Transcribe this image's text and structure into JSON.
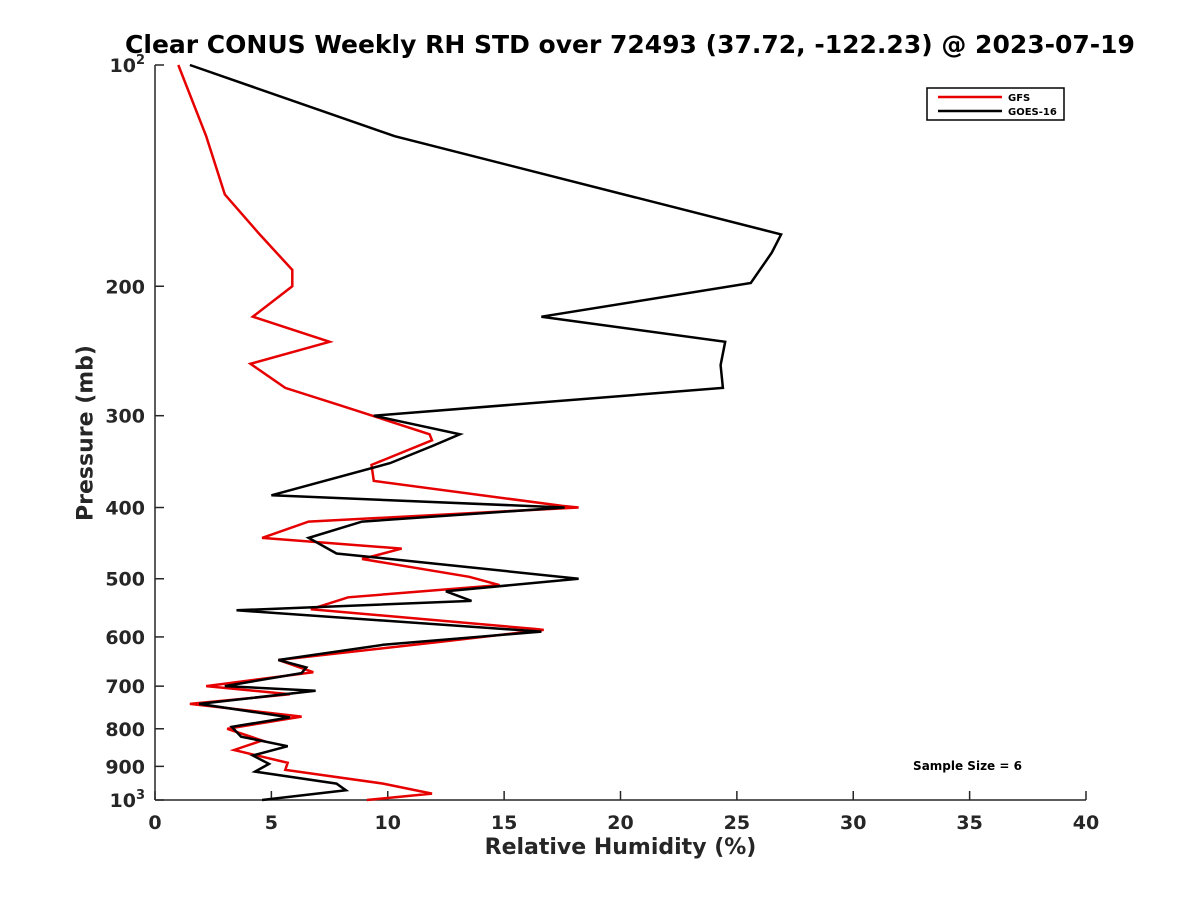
{
  "chart_data": {
    "type": "line",
    "title": "Clear CONUS Weekly RH STD over 72493 (37.72, -122.23) @ 2023-07-19",
    "xlabel": "Relative Humidity (%)",
    "ylabel": "Pressure (mb)",
    "xlim": [
      0,
      40
    ],
    "ylim": [
      100,
      1000
    ],
    "y_scale": "log",
    "y_reversed": true,
    "x_ticks": [
      0,
      5,
      10,
      15,
      20,
      25,
      30,
      35,
      40
    ],
    "y_ticks": [
      {
        "value": 100,
        "label": "10",
        "sup": "2"
      },
      {
        "value": 200,
        "label": "200"
      },
      {
        "value": 300,
        "label": "300"
      },
      {
        "value": 400,
        "label": "400"
      },
      {
        "value": 500,
        "label": "500"
      },
      {
        "value": 600,
        "label": "600"
      },
      {
        "value": 700,
        "label": "700"
      },
      {
        "value": 800,
        "label": "800"
      },
      {
        "value": 900,
        "label": "900"
      },
      {
        "value": 1000,
        "label": "10",
        "sup": "3"
      }
    ],
    "legend_position": "top-right",
    "grid": false,
    "series": [
      {
        "name": "GFS",
        "color": "#e60000",
        "points": [
          [
            1.0,
            100
          ],
          [
            2.2,
            125
          ],
          [
            3.0,
            150
          ],
          [
            4.5,
            170
          ],
          [
            5.9,
            190
          ],
          [
            5.9,
            200
          ],
          [
            4.2,
            220
          ],
          [
            7.5,
            238
          ],
          [
            4.1,
            255
          ],
          [
            5.6,
            275
          ],
          [
            7.9,
            290
          ],
          [
            11.8,
            318
          ],
          [
            11.9,
            324
          ],
          [
            9.3,
            350
          ],
          [
            9.4,
            368
          ],
          [
            17.5,
            398
          ],
          [
            18.2,
            400
          ],
          [
            6.6,
            418
          ],
          [
            4.6,
            440
          ],
          [
            10.6,
            455
          ],
          [
            8.9,
            470
          ],
          [
            13.5,
            497
          ],
          [
            14.8,
            510
          ],
          [
            8.3,
            530
          ],
          [
            6.7,
            550
          ],
          [
            16.3,
            585
          ],
          [
            16.7,
            587
          ],
          [
            12.1,
            610
          ],
          [
            5.3,
            645
          ],
          [
            6.8,
            670
          ],
          [
            2.2,
            700
          ],
          [
            5.8,
            718
          ],
          [
            1.5,
            740
          ],
          [
            6.3,
            770
          ],
          [
            3.1,
            800
          ],
          [
            4.6,
            830
          ],
          [
            3.4,
            855
          ],
          [
            5.7,
            890
          ],
          [
            5.6,
            910
          ],
          [
            9.8,
            950
          ],
          [
            11.9,
            980
          ],
          [
            9.1,
            1000
          ]
        ]
      },
      {
        "name": "GOES-16",
        "color": "#000000",
        "points": [
          [
            1.5,
            100
          ],
          [
            10.3,
            125
          ],
          [
            26.9,
            170
          ],
          [
            26.5,
            180
          ],
          [
            25.6,
            198
          ],
          [
            16.6,
            220
          ],
          [
            24.5,
            238
          ],
          [
            24.3,
            256
          ],
          [
            24.4,
            275
          ],
          [
            9.4,
            300
          ],
          [
            13.1,
            318
          ],
          [
            11.9,
            330
          ],
          [
            10.1,
            348
          ],
          [
            5.0,
            385
          ],
          [
            17.6,
            400
          ],
          [
            8.9,
            418
          ],
          [
            6.6,
            440
          ],
          [
            7.8,
            462
          ],
          [
            10.1,
            470
          ],
          [
            18.2,
            500
          ],
          [
            12.5,
            520
          ],
          [
            13.6,
            536
          ],
          [
            3.5,
            552
          ],
          [
            16.6,
            590
          ],
          [
            9.8,
            615
          ],
          [
            5.3,
            645
          ],
          [
            6.5,
            660
          ],
          [
            6.3,
            672
          ],
          [
            3.0,
            700
          ],
          [
            6.9,
            710
          ],
          [
            1.9,
            740
          ],
          [
            5.8,
            772
          ],
          [
            3.3,
            795
          ],
          [
            3.7,
            820
          ],
          [
            5.7,
            845
          ],
          [
            4.2,
            870
          ],
          [
            4.9,
            893
          ],
          [
            4.3,
            915
          ],
          [
            7.8,
            950
          ],
          [
            8.2,
            970
          ],
          [
            4.6,
            1000
          ]
        ]
      }
    ],
    "annotation": "Sample Size = 6"
  }
}
